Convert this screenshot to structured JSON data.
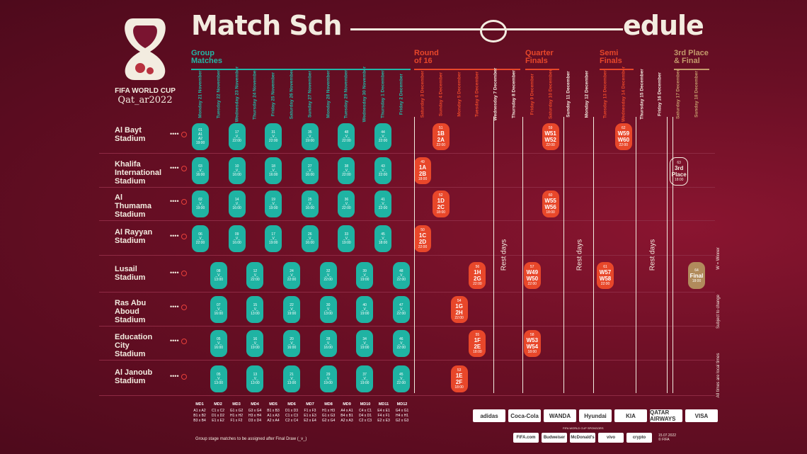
{
  "logo": {
    "line1": "FIFA WORLD CUP",
    "line2": "Qat_ar2022"
  },
  "title": {
    "left": "Match Sch",
    "right": "edule"
  },
  "phases": [
    {
      "label": "Group\nMatches",
      "color": "#22b7a6"
    },
    {
      "label": "Round\nof 16",
      "color": "#e8472a"
    },
    {
      "label": "Quarter\nFinals",
      "color": "#e8472a"
    },
    {
      "label": "Semi\nFinals",
      "color": "#e8472a"
    },
    {
      "label": "3rd Place\n& Final",
      "color": "#c39a6b"
    }
  ],
  "days": [
    {
      "wd": "Monday",
      "d": "21 November",
      "c": "#22b7a6"
    },
    {
      "wd": "Tuesday",
      "d": "22 November",
      "c": "#22b7a6"
    },
    {
      "wd": "Wednesday",
      "d": "23 November",
      "c": "#22b7a6"
    },
    {
      "wd": "Thursday",
      "d": "24 November",
      "c": "#22b7a6"
    },
    {
      "wd": "Friday",
      "d": "25 November",
      "c": "#22b7a6"
    },
    {
      "wd": "Saturday",
      "d": "26 November",
      "c": "#22b7a6"
    },
    {
      "wd": "Sunday",
      "d": "27 November",
      "c": "#22b7a6"
    },
    {
      "wd": "Monday",
      "d": "28 November",
      "c": "#22b7a6"
    },
    {
      "wd": "Tuesday",
      "d": "29 November",
      "c": "#22b7a6"
    },
    {
      "wd": "Wednesday",
      "d": "30 November",
      "c": "#22b7a6"
    },
    {
      "wd": "Thursday",
      "d": "1 December",
      "c": "#22b7a6"
    },
    {
      "wd": "Friday",
      "d": "2 December",
      "c": "#22b7a6"
    },
    {
      "wd": "Saturday",
      "d": "3 December",
      "c": "#e8472a"
    },
    {
      "wd": "Sunday",
      "d": "4 December",
      "c": "#e8472a"
    },
    {
      "wd": "Monday",
      "d": "5 December",
      "c": "#e8472a"
    },
    {
      "wd": "Tuesday",
      "d": "6 December",
      "c": "#e8472a"
    },
    {
      "wd": "Wednesday",
      "d": "7 December",
      "c": "#f3ece0"
    },
    {
      "wd": "Thursday",
      "d": "8 December",
      "c": "#f3ece0"
    },
    {
      "wd": "Friday",
      "d": "9 December",
      "c": "#e8472a"
    },
    {
      "wd": "Saturday",
      "d": "10 December",
      "c": "#e8472a"
    },
    {
      "wd": "Sunday",
      "d": "11 December",
      "c": "#f3ece0"
    },
    {
      "wd": "Monday",
      "d": "12 December",
      "c": "#f3ece0"
    },
    {
      "wd": "Tuesday",
      "d": "13 December",
      "c": "#e8472a"
    },
    {
      "wd": "Wednesday",
      "d": "14 December",
      "c": "#e8472a"
    },
    {
      "wd": "Thursday",
      "d": "15 December",
      "c": "#f3ece0"
    },
    {
      "wd": "Friday",
      "d": "16 December",
      "c": "#f3ece0"
    },
    {
      "wd": "Saturday",
      "d": "17 December",
      "c": "#c39a6b"
    },
    {
      "wd": "Sunday",
      "d": "18 December",
      "c": "#c39a6b"
    }
  ],
  "stadiums": [
    "Al Bayt\nStadium",
    "Khalifa\nInternational\nStadium",
    "Al\nThumama\nStadium",
    "Al Rayyan\nStadium",
    "Lusail\nStadium",
    "Ras Abu\nAboud\nStadium",
    "Education\nCity\nStadium",
    "Al Janoub\nStadium"
  ],
  "group_cells": {
    "row0": [
      [
        "01",
        "A1",
        "A2",
        "19:00"
      ],
      [
        "17",
        "_V_",
        "",
        "22:00"
      ],
      [
        "31",
        "_V_",
        "",
        "22:00"
      ],
      [
        "35",
        "_V_",
        "",
        "19:00"
      ],
      [
        "48",
        "_V_",
        "",
        "22:00"
      ],
      [
        "44",
        "_V_",
        "",
        "22:00"
      ]
    ],
    "row1": [
      [
        "03",
        "_V_",
        "",
        "16:00"
      ],
      [
        "10",
        "_V_",
        "",
        "16:00"
      ],
      [
        "18",
        "_V_",
        "",
        "16:00"
      ],
      [
        "27",
        "_V_",
        "",
        "16:00"
      ],
      [
        "38",
        "_V_",
        "",
        "22:00"
      ],
      [
        "43",
        "_V_",
        "",
        "22:00"
      ]
    ],
    "row2": [
      [
        "02",
        "_V_",
        "",
        "19:00"
      ],
      [
        "14",
        "_V_",
        "",
        "16:00"
      ],
      [
        "19",
        "_V_",
        "",
        "19:00"
      ],
      [
        "25",
        "_V_",
        "",
        "16:00"
      ],
      [
        "36",
        "_V_",
        "",
        "22:00"
      ],
      [
        "41",
        "_V_",
        "",
        "22:00"
      ]
    ],
    "row3": [
      [
        "06",
        "_V_",
        "",
        "22:00"
      ],
      [
        "09",
        "_V_",
        "",
        "16:00"
      ],
      [
        "17",
        "_V_",
        "",
        "19:00"
      ],
      [
        "26",
        "_V_",
        "",
        "16:00"
      ],
      [
        "33",
        "_V_",
        "",
        "19:00"
      ],
      [
        "45",
        "_V_",
        "",
        "18:00"
      ]
    ],
    "row4": [
      [
        "08",
        "_V_",
        "",
        "13:00"
      ],
      [
        "12",
        "_V_",
        "",
        "22:00"
      ],
      [
        "24",
        "_V_",
        "",
        "22:00"
      ],
      [
        "32",
        "_V_",
        "",
        "22:00"
      ],
      [
        "39",
        "_V_",
        "",
        "19:00"
      ],
      [
        "48",
        "_V_",
        "",
        "22:00"
      ]
    ],
    "row5": [
      [
        "07",
        "_V_",
        "",
        "16:00"
      ],
      [
        "15",
        "_V_",
        "",
        "13:00"
      ],
      [
        "22",
        "_V_",
        "",
        "19:00"
      ],
      [
        "30",
        "_V_",
        "",
        "13:00"
      ],
      [
        "40",
        "_V_",
        "",
        "19:00"
      ],
      [
        "47",
        "_V_",
        "",
        "22:00"
      ]
    ],
    "row6": [
      [
        "05",
        "_V_",
        "",
        "16:00"
      ],
      [
        "16",
        "_V_",
        "",
        "19:00"
      ],
      [
        "20",
        "_V_",
        "",
        "16:00"
      ],
      [
        "28",
        "_V_",
        "",
        "16:00"
      ],
      [
        "34",
        "_V_",
        "",
        "19:00"
      ],
      [
        "46",
        "_V_",
        "",
        "22:00"
      ]
    ],
    "row7": [
      [
        "05",
        "_V_",
        "",
        "13:00"
      ],
      [
        "13",
        "_V_",
        "",
        "13:00"
      ],
      [
        "21",
        "_V_",
        "",
        "13:00"
      ],
      [
        "29",
        "_V_",
        "",
        "19:00"
      ],
      [
        "37",
        "_V_",
        "",
        "19:00"
      ],
      [
        "45",
        "_V_",
        "",
        "22:00"
      ]
    ]
  },
  "knockout": [
    {
      "row": 0,
      "col": 13,
      "n": "51",
      "a": "1B",
      "b": "2A",
      "t": "22:00",
      "kind": "orange"
    },
    {
      "row": 0,
      "col": 19,
      "n": "59",
      "a": "W51",
      "b": "W52",
      "t": "22:00",
      "kind": "orange"
    },
    {
      "row": 0,
      "col": 23,
      "n": "62",
      "a": "W59",
      "b": "W60",
      "t": "22:00",
      "kind": "orange"
    },
    {
      "row": 1,
      "col": 12,
      "n": "49",
      "a": "1A",
      "b": "2B",
      "t": "18:00",
      "kind": "orange"
    },
    {
      "row": 1,
      "col": 26,
      "n": "63",
      "a": "3rd",
      "b": "Place",
      "t": "18:00",
      "kind": "outline"
    },
    {
      "row": 2,
      "col": 13,
      "n": "52",
      "a": "1D",
      "b": "2C",
      "t": "18:00",
      "kind": "orange"
    },
    {
      "row": 2,
      "col": 19,
      "n": "60",
      "a": "W55",
      "b": "W56",
      "t": "18:00",
      "kind": "orange"
    },
    {
      "row": 3,
      "col": 12,
      "n": "50",
      "a": "1C",
      "b": "2D",
      "t": "22:00",
      "kind": "orange"
    },
    {
      "row": 4,
      "col": 15,
      "n": "56",
      "a": "1H",
      "b": "2G",
      "t": "22:00",
      "kind": "orange"
    },
    {
      "row": 4,
      "col": 18,
      "n": "57",
      "a": "W49",
      "b": "W50",
      "t": "22:00",
      "kind": "orange"
    },
    {
      "row": 4,
      "col": 22,
      "n": "61",
      "a": "W57",
      "b": "W58",
      "t": "22:00",
      "kind": "orange"
    },
    {
      "row": 4,
      "col": 27,
      "n": "64",
      "a": "Final",
      "b": "",
      "t": "18:00",
      "kind": "gold"
    },
    {
      "row": 5,
      "col": 14,
      "n": "54",
      "a": "1G",
      "b": "2H",
      "t": "22:00",
      "kind": "orange"
    },
    {
      "row": 6,
      "col": 15,
      "n": "55",
      "a": "1F",
      "b": "2E",
      "t": "18:00",
      "kind": "orange"
    },
    {
      "row": 6,
      "col": 18,
      "n": "58",
      "a": "W53",
      "b": "W54",
      "t": "18:00",
      "kind": "orange"
    },
    {
      "row": 7,
      "col": 14,
      "n": "53",
      "a": "1E",
      "b": "2F",
      "t": "18:00",
      "kind": "orange"
    }
  ],
  "rest_days": [
    "Rest days",
    "Rest days",
    "Rest days"
  ],
  "md": [
    {
      "h": "MD1",
      "r": [
        "A1 x A2",
        "B1 x B2",
        "B3 x B4"
      ]
    },
    {
      "h": "MD2",
      "r": [
        "C1 x C2",
        "D1 x D2",
        "E1 x E2"
      ]
    },
    {
      "h": "MD3",
      "r": [
        "G1 x G2",
        "H1 x H2",
        "F1 x F2"
      ]
    },
    {
      "h": "MD4",
      "r": [
        "G3 x G4",
        "H3 x H4",
        "D3 x D4"
      ]
    },
    {
      "h": "MD5",
      "r": [
        "B1 x B3",
        "A1 x A3",
        "A2 x A4"
      ]
    },
    {
      "h": "MD6",
      "r": [
        "D1 x D3",
        "C1 x C3",
        "C2 x C4"
      ]
    },
    {
      "h": "MD7",
      "r": [
        "F1 x F3",
        "E1 x E3",
        "E2 x E4"
      ]
    },
    {
      "h": "MD8",
      "r": [
        "H1 x H3",
        "G1 x G3",
        "G2 x G4"
      ]
    },
    {
      "h": "MD9",
      "r": [
        "A4 x A1",
        "B4 x B1",
        "A2 x A3"
      ]
    },
    {
      "h": "MD10",
      "r": [
        "C4 x C1",
        "D4 x D1",
        "C2 x C3"
      ]
    },
    {
      "h": "MD11",
      "r": [
        "E4 x E1",
        "F4 x F1",
        "E2 x E3"
      ]
    },
    {
      "h": "MD12",
      "r": [
        "G4 x G1",
        "H4 x H1",
        "G2 x G3"
      ]
    }
  ],
  "footnote": "Group stage matches to be assigned after Final Draw (_v_)",
  "side_notes": [
    "W = Winner",
    "Subject to change",
    "All times are local times"
  ],
  "sponsors_top": [
    "adidas",
    "Coca-Cola",
    "WANDA",
    "Hyundai",
    "KIA",
    "QATAR AIRWAYS",
    "VISA"
  ],
  "sponsors_caption": "FIFA WORLD CUP SPONSORS",
  "sponsors_bottom": [
    "FIFA.com",
    "Budweiser",
    "McDonald's",
    "vivo",
    "crypto"
  ],
  "date_stamp": "15.07.2022\n© FIFA"
}
